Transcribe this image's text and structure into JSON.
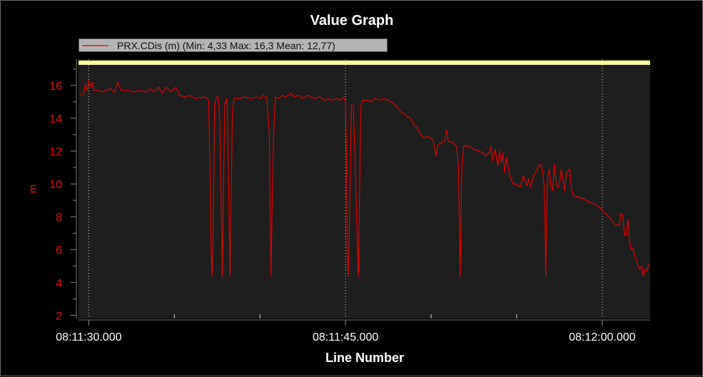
{
  "chart_data": {
    "type": "line",
    "title": "Value Graph",
    "xlabel": "Line Number",
    "ylabel": "m",
    "legend": {
      "text": "PRX.CDis (m) (Min: 4,33 Max: 16,3 Mean: 12,77)",
      "placement": "top-left"
    },
    "xlim": [
      -0.6,
      32.8
    ],
    "ylim": [
      1.8,
      17.6
    ],
    "y_ticks": [
      2,
      4,
      6,
      8,
      10,
      12,
      14,
      16
    ],
    "x_ticks": [
      {
        "value": 0,
        "label": "08:11:30.000"
      },
      {
        "value": 15,
        "label": "08:11:45.000"
      },
      {
        "value": 30,
        "label": "08:12:00.000"
      }
    ],
    "x_minor_ticks": [
      5,
      10,
      20,
      25
    ],
    "grid": {
      "x": true,
      "y": false
    },
    "limit_band_y": 17.4,
    "colors": {
      "series": "#e00000",
      "plot_background": "#1e1e1e",
      "band": "#ffff99",
      "axis_text": "#e01010",
      "legend_bg": "#b4b4b4"
    },
    "series": [
      {
        "name": "PRX.CDis (m)",
        "points": [
          [
            -0.5,
            15.4
          ],
          [
            -0.3,
            15.5
          ],
          [
            -0.2,
            16.1
          ],
          [
            -0.1,
            15.7
          ],
          [
            0,
            16.3
          ],
          [
            0.1,
            15.9
          ],
          [
            0.2,
            16.2
          ],
          [
            0.3,
            15.7
          ],
          [
            0.5,
            15.7
          ],
          [
            0.8,
            15.6
          ],
          [
            1,
            15.7
          ],
          [
            1.3,
            15.8
          ],
          [
            1.5,
            15.6
          ],
          [
            1.7,
            16.2
          ],
          [
            1.9,
            15.7
          ],
          [
            2.3,
            15.7
          ],
          [
            2.6,
            15.6
          ],
          [
            3,
            15.7
          ],
          [
            3.3,
            15.6
          ],
          [
            3.6,
            15.8
          ],
          [
            3.8,
            15.6
          ],
          [
            4.1,
            15.9
          ],
          [
            4.3,
            15.5
          ],
          [
            4.5,
            15.9
          ],
          [
            4.8,
            15.6
          ],
          [
            5.1,
            15.9
          ],
          [
            5.3,
            15.4
          ],
          [
            5.6,
            15.3
          ],
          [
            5.9,
            15.4
          ],
          [
            6.2,
            15.2
          ],
          [
            6.8,
            15.3
          ],
          [
            7.0,
            15.1
          ],
          [
            7.1,
            10
          ],
          [
            7.15,
            6
          ],
          [
            7.2,
            4.4
          ],
          [
            7.25,
            6
          ],
          [
            7.3,
            10
          ],
          [
            7.35,
            14.8
          ],
          [
            7.45,
            15.3
          ],
          [
            7.55,
            15.3
          ],
          [
            7.65,
            14
          ],
          [
            7.75,
            8
          ],
          [
            7.8,
            4.4
          ],
          [
            7.85,
            8
          ],
          [
            7.95,
            14.8
          ],
          [
            8.05,
            15.2
          ],
          [
            8.1,
            14.5
          ],
          [
            8.2,
            8
          ],
          [
            8.25,
            4.4
          ],
          [
            8.3,
            8
          ],
          [
            8.4,
            14.5
          ],
          [
            8.5,
            15.2
          ],
          [
            8.8,
            15.2
          ],
          [
            9.1,
            15.3
          ],
          [
            9.5,
            15.2
          ],
          [
            9.8,
            15.3
          ],
          [
            10.0,
            15.2
          ],
          [
            10.2,
            15.4
          ],
          [
            10.4,
            15.3
          ],
          [
            10.55,
            13
          ],
          [
            10.6,
            8
          ],
          [
            10.65,
            4.4
          ],
          [
            10.7,
            8
          ],
          [
            10.8,
            13
          ],
          [
            10.9,
            15.3
          ],
          [
            11.1,
            15.2
          ],
          [
            11.3,
            15.4
          ],
          [
            11.5,
            15.3
          ],
          [
            11.8,
            15.5
          ],
          [
            12.0,
            15.3
          ],
          [
            12.3,
            15.4
          ],
          [
            12.5,
            15.2
          ],
          [
            12.8,
            15.4
          ],
          [
            13.0,
            15.3
          ],
          [
            13.2,
            15.2
          ],
          [
            13.5,
            15.3
          ],
          [
            13.8,
            15.1
          ],
          [
            14.0,
            15.2
          ],
          [
            14.2,
            15.1
          ],
          [
            14.5,
            15.2
          ],
          [
            14.7,
            15.1
          ],
          [
            14.9,
            15.3
          ],
          [
            15.0,
            15.0
          ],
          [
            15.05,
            12
          ],
          [
            15.1,
            6
          ],
          [
            15.15,
            4.4
          ],
          [
            15.2,
            6
          ],
          [
            15.3,
            12
          ],
          [
            15.35,
            14.8
          ],
          [
            15.45,
            14.8
          ],
          [
            15.55,
            12
          ],
          [
            15.65,
            8
          ],
          [
            15.75,
            4.4
          ],
          [
            15.8,
            8
          ],
          [
            15.9,
            14.8
          ],
          [
            16.0,
            15.1
          ],
          [
            16.3,
            15.1
          ],
          [
            16.5,
            15.0
          ],
          [
            16.7,
            15.2
          ],
          [
            17.0,
            15.1
          ],
          [
            17.2,
            15.2
          ],
          [
            17.5,
            15.1
          ],
          [
            17.8,
            14.9
          ],
          [
            18.0,
            14.7
          ],
          [
            18.2,
            14.4
          ],
          [
            18.4,
            14.3
          ],
          [
            18.6,
            14.1
          ],
          [
            18.8,
            14.0
          ],
          [
            19.0,
            13.6
          ],
          [
            19.2,
            13.4
          ],
          [
            19.4,
            13.0
          ],
          [
            19.6,
            12.8
          ],
          [
            19.8,
            12.9
          ],
          [
            20.1,
            12.7
          ],
          [
            20.2,
            12.3
          ],
          [
            20.3,
            11.7
          ],
          [
            20.4,
            12.4
          ],
          [
            20.6,
            12.5
          ],
          [
            20.8,
            12.6
          ],
          [
            20.9,
            13.3
          ],
          [
            21.0,
            12.6
          ],
          [
            21.3,
            12.5
          ],
          [
            21.5,
            12.3
          ],
          [
            21.6,
            11
          ],
          [
            21.65,
            8
          ],
          [
            21.7,
            4.4
          ],
          [
            21.75,
            8
          ],
          [
            21.8,
            11
          ],
          [
            21.9,
            12.3
          ],
          [
            22.2,
            12.3
          ],
          [
            22.5,
            12.1
          ],
          [
            22.8,
            12.0
          ],
          [
            23.0,
            11.9
          ],
          [
            23.2,
            11.7
          ],
          [
            23.4,
            11.9
          ],
          [
            23.5,
            12.3
          ],
          [
            23.6,
            11.4
          ],
          [
            23.75,
            12.1
          ],
          [
            23.9,
            11.1
          ],
          [
            24.0,
            12.0
          ],
          [
            24.1,
            11.3
          ],
          [
            24.2,
            11.9
          ],
          [
            24.3,
            10.7
          ],
          [
            24.4,
            11.6
          ],
          [
            24.6,
            10.5
          ],
          [
            24.8,
            10.0
          ],
          [
            25.0,
            10.0
          ],
          [
            25.2,
            9.8
          ],
          [
            25.4,
            10.5
          ],
          [
            25.6,
            9.9
          ],
          [
            25.7,
            10.3
          ],
          [
            25.8,
            9.8
          ],
          [
            26.0,
            10.5
          ],
          [
            26.2,
            10.9
          ],
          [
            26.4,
            11.2
          ],
          [
            26.5,
            10.9
          ],
          [
            26.6,
            10
          ],
          [
            26.65,
            8
          ],
          [
            26.7,
            4.4
          ],
          [
            26.75,
            8
          ],
          [
            26.8,
            10.3
          ],
          [
            26.9,
            10.9
          ],
          [
            27.0,
            9.9
          ],
          [
            27.1,
            9.6
          ],
          [
            27.2,
            11.2
          ],
          [
            27.3,
            10.1
          ],
          [
            27.4,
            9.8
          ],
          [
            27.5,
            10.0
          ],
          [
            27.6,
            10.9
          ],
          [
            27.7,
            10.3
          ],
          [
            27.8,
            9.6
          ],
          [
            27.9,
            10.6
          ],
          [
            28.0,
            10.8
          ],
          [
            28.1,
            10.9
          ],
          [
            28.2,
            9.7
          ],
          [
            28.3,
            9.3
          ],
          [
            28.6,
            9.2
          ],
          [
            28.9,
            9.1
          ],
          [
            29.2,
            8.9
          ],
          [
            29.5,
            8.8
          ],
          [
            29.8,
            8.6
          ],
          [
            30.0,
            8.4
          ],
          [
            30.2,
            8.2
          ],
          [
            30.4,
            8.0
          ],
          [
            30.6,
            7.7
          ],
          [
            30.8,
            7.5
          ],
          [
            31.0,
            7.5
          ],
          [
            31.1,
            8.2
          ],
          [
            31.2,
            8.1
          ],
          [
            31.3,
            6.9
          ],
          [
            31.4,
            6.9
          ],
          [
            31.5,
            7.8
          ],
          [
            31.6,
            6.5
          ],
          [
            31.7,
            6.0
          ],
          [
            31.8,
            6.1
          ],
          [
            31.9,
            5.6
          ],
          [
            32.0,
            5.4
          ],
          [
            32.1,
            5.0
          ],
          [
            32.2,
            4.8
          ],
          [
            32.3,
            5.0
          ],
          [
            32.4,
            4.4
          ],
          [
            32.5,
            4.8
          ],
          [
            32.6,
            4.7
          ],
          [
            32.7,
            5.1
          ]
        ]
      }
    ]
  }
}
